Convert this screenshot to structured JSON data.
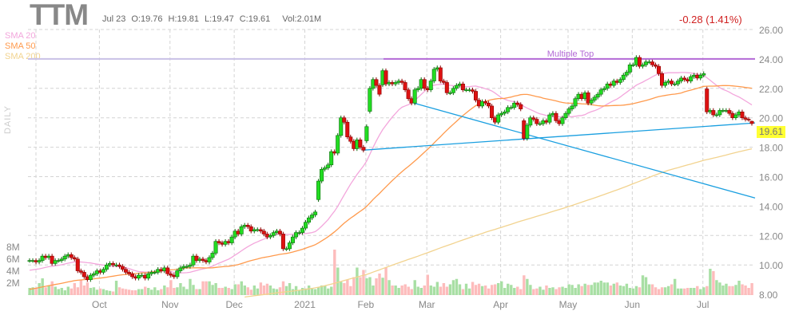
{
  "header": {
    "ticker": "TTM",
    "date": "Jul 23",
    "open": "O:19.76",
    "high": "H:19.81",
    "low": "L:19.47",
    "close": "C:19.61",
    "volume": "Vol:2.01M",
    "change": "-0.28 (1.41%)",
    "change_color": "#d02020"
  },
  "legend": [
    {
      "label": "SMA 20",
      "color": "#f3a6dc"
    },
    {
      "label": "SMA 50",
      "color": "#ff9a4d"
    },
    {
      "label": "SMA 200",
      "color": "#f2d38f"
    }
  ],
  "timeframe_label": "DAILY",
  "last_price_tag": "19.61",
  "chart_data": {
    "type": "candlestick",
    "title": "TTM",
    "price_axis": {
      "ticks": [
        "26.00",
        "24.00",
        "22.00",
        "20.00",
        "18.00",
        "16.00",
        "14.00",
        "12.00",
        "10.00",
        "8.00"
      ],
      "range": [
        8,
        26
      ]
    },
    "volume_axis": {
      "ticks": [
        "8M",
        "6M",
        "4M",
        "2M"
      ],
      "range_millions": [
        0,
        8
      ]
    },
    "grid": true,
    "months": [
      {
        "label": "",
        "closes": [
          10.3,
          10.3,
          10.2,
          10.3,
          10.6,
          10.5,
          10.6,
          10.1,
          10.3,
          10.3,
          10.4,
          10.6,
          10.7,
          10.5,
          10.4,
          9.6,
          9.5,
          9.2,
          9.0,
          9.3,
          9.4,
          9.6
        ],
        "volume_m": [
          1.2,
          1.3,
          1.2,
          2.0,
          2.8,
          1.3,
          1.6,
          2.3,
          1.4,
          1.0,
          1.2,
          0.8,
          1.4,
          1.1,
          2.0,
          1.3,
          2.5,
          1.6,
          2.1,
          1.2,
          1.3,
          0.9
        ]
      },
      {
        "label": "Oct",
        "closes": [
          9.5,
          9.7,
          10.0,
          10.1,
          10.0,
          10.0,
          9.9,
          9.7,
          9.5,
          9.4,
          9.2,
          9.1,
          9.3,
          9.3,
          9.1,
          9.4,
          9.5,
          9.5,
          9.7,
          9.6,
          9.8,
          9.4
        ],
        "volume_m": [
          1.1,
          1.0,
          0.8,
          0.7,
          0.6,
          2.4,
          1.3,
          1.1,
          1.0,
          0.9,
          0.8,
          0.8,
          1.0,
          1.0,
          1.4,
          1.2,
          0.9,
          1.3,
          0.8,
          1.0,
          1.6,
          1.3
        ]
      },
      {
        "label": "Nov",
        "closes": [
          9.3,
          9.2,
          9.6,
          9.8,
          9.9,
          9.9,
          10.0,
          10.6,
          10.3,
          10.4,
          10.3,
          10.2,
          10.5,
          10.8,
          11.6,
          11.5,
          11.4,
          11.6,
          11.5,
          11.9
        ],
        "volume_m": [
          2.5,
          1.2,
          1.3,
          2.0,
          1.4,
          1.0,
          2.7,
          1.7,
          1.0,
          1.0,
          2.3,
          2.3,
          2.3,
          1.7,
          2.0,
          1.2,
          1.2,
          1.4,
          1.2,
          1.0
        ]
      },
      {
        "label": "Dec",
        "closes": [
          12.3,
          12.1,
          12.6,
          12.7,
          12.6,
          12.3,
          12.4,
          12.4,
          12.3,
          12.1,
          11.9,
          12.0,
          12.2,
          12.3,
          12.1,
          11.1,
          11.1,
          11.5,
          11.9,
          12.2,
          12.2,
          12.5
        ],
        "volume_m": [
          1.8,
          1.8,
          2.3,
          1.6,
          1.3,
          0.9,
          1.6,
          1.1,
          2.1,
          1.6,
          1.9,
          1.6,
          1.1,
          1.0,
          1.3,
          2.3,
          1.5,
          2.0,
          1.0,
          1.5,
          0.8,
          1.2
        ]
      },
      {
        "label": "2021",
        "closes": [
          12.9,
          13.2,
          13.4,
          13.6,
          15.7,
          16.5,
          16.6,
          16.8,
          17.7,
          17.6,
          18.8,
          20.0,
          19.7,
          18.7,
          18.4,
          17.9,
          18.5,
          18.0,
          17.8
        ],
        "volume_m": [
          1.1,
          1.6,
          1.2,
          1.0,
          1.3,
          1.6,
          1.6,
          1.1,
          1.4,
          7.6,
          4.6,
          2.2,
          2.0,
          2.6,
          1.5,
          3.0,
          4.6,
          3.0,
          4.2
        ]
      },
      {
        "label": "Feb",
        "closes": [
          19.4,
          22.0,
          22.6,
          22.2,
          21.6,
          23.2,
          22.3,
          22.4,
          22.3,
          22.4,
          22.5,
          22.4,
          21.9,
          21.3,
          21.0,
          21.9,
          22.0,
          22.6,
          22.0
        ],
        "volume_m": [
          2.8,
          3.0,
          1.6,
          2.8,
          3.6,
          2.9,
          4.6,
          2.5,
          1.6,
          1.6,
          1.2,
          1.6,
          1.8,
          1.4,
          1.0,
          2.5,
          1.4,
          1.2,
          1.6
        ]
      },
      {
        "label": "Mar",
        "closes": [
          21.9,
          22.5,
          23.3,
          23.4,
          22.5,
          22.4,
          21.7,
          21.7,
          22.0,
          22.2,
          22.3,
          21.9,
          21.9,
          21.9,
          21.8,
          21.2,
          20.8,
          21.1,
          21.0,
          20.8,
          20.0,
          19.7,
          20.2
        ],
        "volume_m": [
          3.4,
          1.6,
          1.4,
          2.2,
          1.4,
          2.0,
          1.4,
          1.8,
          2.5,
          2.7,
          1.8,
          1.0,
          1.9,
          1.1,
          2.2,
          1.7,
          1.9,
          1.5,
          1.6,
          1.1,
          1.7,
          1.8,
          2.0
        ]
      },
      {
        "label": "Apr",
        "closes": [
          20.3,
          20.4,
          20.7,
          20.7,
          21.0,
          20.9,
          20.6,
          18.6,
          19.5,
          20.0,
          19.9,
          19.6,
          19.6,
          19.8,
          19.7,
          20.2,
          20.3,
          19.8,
          19.6,
          20.0,
          20.3
        ],
        "volume_m": [
          2.3,
          1.2,
          1.9,
          1.7,
          1.2,
          1.4,
          1.0,
          3.3,
          2.7,
          1.7,
          1.0,
          1.1,
          1.4,
          0.9,
          1.6,
          1.2,
          1.3,
          1.0,
          1.3,
          1.4,
          1.2
        ]
      },
      {
        "label": "May",
        "closes": [
          20.6,
          20.8,
          21.3,
          21.6,
          21.3,
          21.7,
          21.0,
          21.2,
          21.4,
          21.6,
          21.9,
          22.0,
          22.3,
          22.2,
          22.5,
          22.4,
          22.6,
          22.9,
          23.1,
          23.6
        ],
        "volume_m": [
          1.8,
          1.7,
          1.2,
          1.8,
          1.5,
          1.9,
          1.7,
          1.7,
          2.1,
          2.1,
          2.4,
          2.1,
          2.1,
          1.6,
          1.9,
          2.1,
          1.6,
          1.5,
          1.9,
          1.2
        ]
      },
      {
        "label": "Jun",
        "closes": [
          23.6,
          24.1,
          23.5,
          23.6,
          23.8,
          23.8,
          23.6,
          23.5,
          23.0,
          22.2,
          22.4,
          22.5,
          22.3,
          22.3,
          22.5,
          22.7,
          22.6,
          22.5,
          22.8,
          22.9,
          22.7,
          22.9
        ],
        "volume_m": [
          1.1,
          1.5,
          1.3,
          3.3,
          3.0,
          1.8,
          1.8,
          1.3,
          1.0,
          1.3,
          1.3,
          1.5,
          1.8,
          2.7,
          1.1,
          1.1,
          1.1,
          1.2,
          1.2,
          1.2,
          1.5,
          1.0
        ]
      },
      {
        "label": "Jul",
        "closes": [
          23.0,
          20.4,
          20.5,
          20.2,
          20.2,
          20.5,
          20.5,
          20.5,
          20.3,
          20.0,
          20.2,
          20.4,
          20.0,
          19.9,
          19.89,
          19.61
        ],
        "volume_m": [
          1.3,
          1.5,
          4.4,
          4.0,
          2.5,
          2.1,
          1.6,
          1.9,
          1.5,
          1.5,
          1.7,
          2.4,
          1.8,
          1.6,
          1.2,
          2.0
        ]
      }
    ],
    "last_candle": {
      "open": 19.76,
      "high": 19.81,
      "low": 19.47,
      "close": 19.61
    },
    "sma_periods": [
      20,
      50,
      200
    ],
    "annotations": {
      "resistance": {
        "label": "Multiple Top",
        "price": 24.0,
        "color": "#b36ad6"
      },
      "trendlines": [
        {
          "from": {
            "month": 4,
            "day": 29,
            "price": 17.8
          },
          "to": {
            "month": 10,
            "day": 23,
            "price": 19.65
          },
          "color": "#1a9fe0"
        },
        {
          "from": {
            "month": 5,
            "day": 24,
            "price": 21.0
          },
          "to": {
            "month": 10,
            "day": 23,
            "price": 14.55
          },
          "color": "#1a9fe0"
        }
      ]
    },
    "colors": {
      "up": "#22dd22",
      "down": "#dd1111",
      "vol_up": "#a8dfa4",
      "vol_down": "#fdbcbc"
    }
  }
}
